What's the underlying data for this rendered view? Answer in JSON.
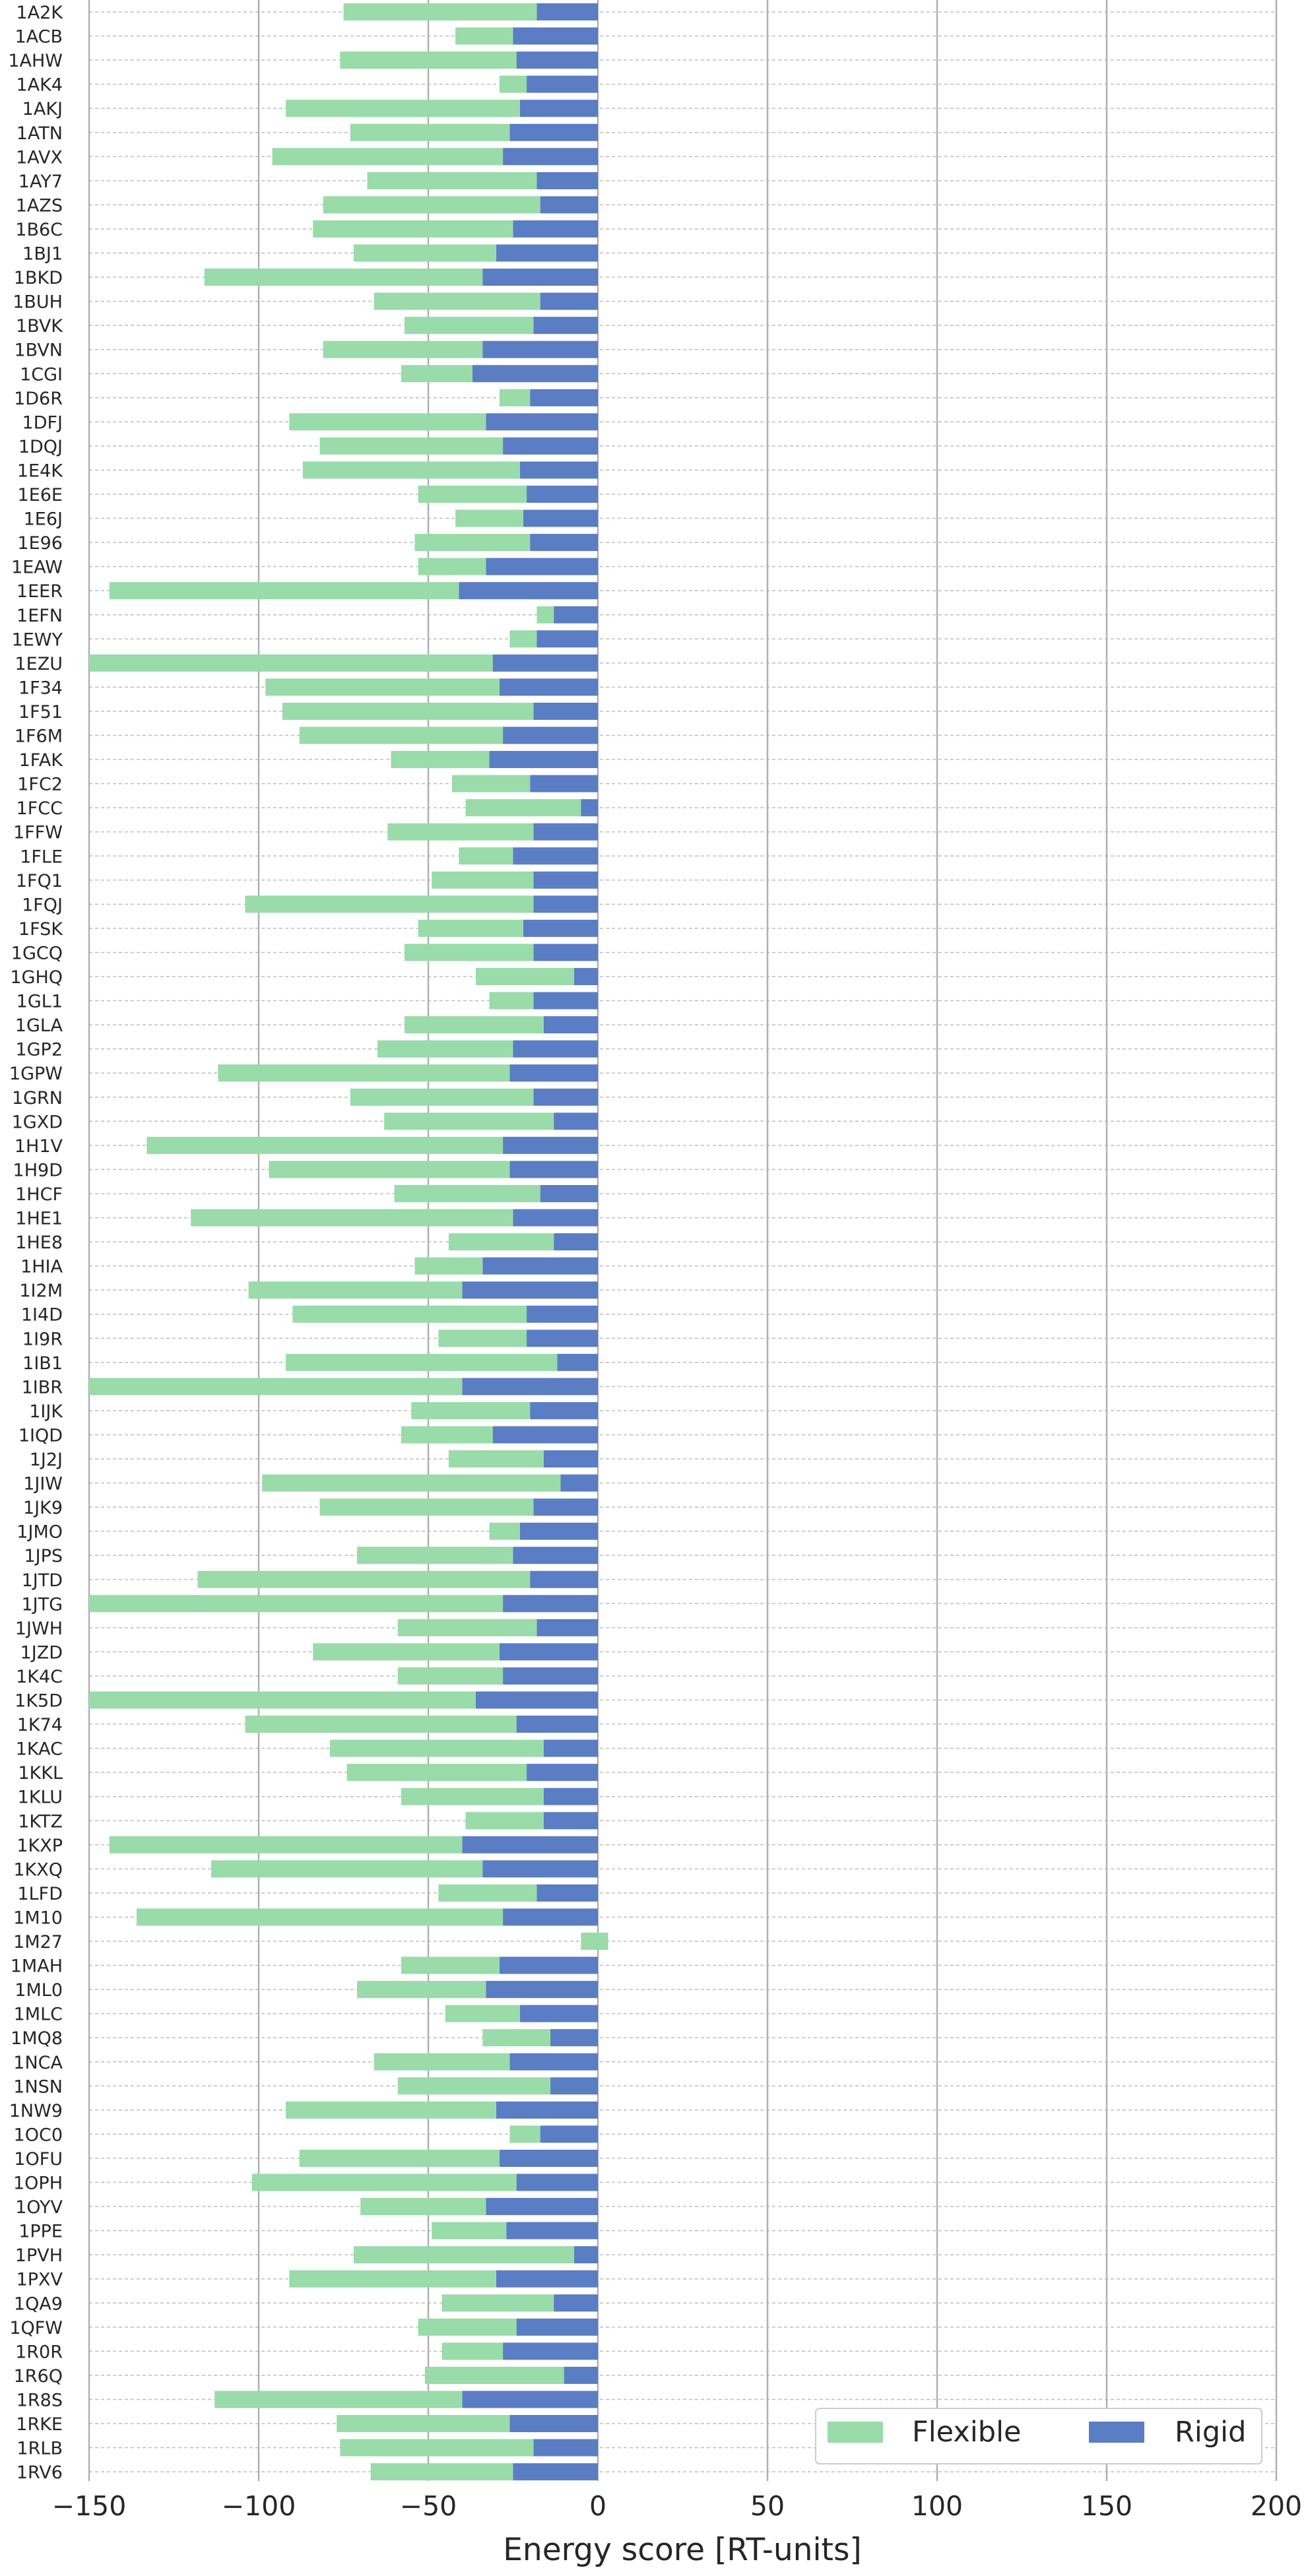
{
  "chart_data": {
    "type": "bar",
    "orientation": "horizontal",
    "stacked": true,
    "xlabel": "Energy score [RT-units]",
    "ylabel": "",
    "xlim": [
      -150,
      200
    ],
    "xticks": [
      -150,
      -100,
      -50,
      0,
      50,
      100,
      150,
      200
    ],
    "xtick_labels": [
      "−150",
      "−100",
      "−50",
      "0",
      "50",
      "100",
      "150",
      "200"
    ],
    "grid": {
      "x": "solid",
      "y": "dashed"
    },
    "legend": {
      "position": "bottom-right",
      "columns": 2
    },
    "categories": [
      "1A2K",
      "1ACB",
      "1AHW",
      "1AK4",
      "1AKJ",
      "1ATN",
      "1AVX",
      "1AY7",
      "1AZS",
      "1B6C",
      "1BJ1",
      "1BKD",
      "1BUH",
      "1BVK",
      "1BVN",
      "1CGI",
      "1D6R",
      "1DFJ",
      "1DQJ",
      "1E4K",
      "1E6E",
      "1E6J",
      "1E96",
      "1EAW",
      "1EER",
      "1EFN",
      "1EWY",
      "1EZU",
      "1F34",
      "1F51",
      "1F6M",
      "1FAK",
      "1FC2",
      "1FCC",
      "1FFW",
      "1FLE",
      "1FQ1",
      "1FQJ",
      "1FSK",
      "1GCQ",
      "1GHQ",
      "1GL1",
      "1GLA",
      "1GP2",
      "1GPW",
      "1GRN",
      "1GXD",
      "1H1V",
      "1H9D",
      "1HCF",
      "1HE1",
      "1HE8",
      "1HIA",
      "1I2M",
      "1I4D",
      "1I9R",
      "1IB1",
      "1IBR",
      "1IJK",
      "1IQD",
      "1J2J",
      "1JIW",
      "1JK9",
      "1JMO",
      "1JPS",
      "1JTD",
      "1JTG",
      "1JWH",
      "1JZD",
      "1K4C",
      "1K5D",
      "1K74",
      "1KAC",
      "1KKL",
      "1KLU",
      "1KTZ",
      "1KXP",
      "1KXQ",
      "1LFD",
      "1M10",
      "1M27",
      "1MAH",
      "1ML0",
      "1MLC",
      "1MQ8",
      "1NCA",
      "1NSN",
      "1NW9",
      "1OC0",
      "1OFU",
      "1OPH",
      "1OYV",
      "1PPE",
      "1PVH",
      "1PXV",
      "1QA9",
      "1QFW",
      "1R0R",
      "1R6Q",
      "1R8S",
      "1RKE",
      "1RLB",
      "1RV6"
    ],
    "series": [
      {
        "name": "Rigid",
        "color": "#5a7dc4",
        "values": [
          -18,
          -25,
          -24,
          -21,
          -23,
          -26,
          -28,
          -18,
          -17,
          -25,
          -30,
          -34,
          -17,
          -19,
          -34,
          -37,
          -20,
          -33,
          -28,
          -23,
          -21,
          -22,
          -20,
          -33,
          -41,
          -13,
          -18,
          -31,
          -29,
          -19,
          -28,
          -32,
          -20,
          -5,
          -19,
          -25,
          -19,
          -19,
          -22,
          -19,
          -7,
          -19,
          -16,
          -25,
          -26,
          -19,
          -13,
          -28,
          -26,
          -17,
          -25,
          -13,
          -34,
          -40,
          -21,
          -21,
          -12,
          -40,
          -20,
          -31,
          -16,
          -11,
          -19,
          -23,
          -25,
          -20,
          -28,
          -18,
          -29,
          -28,
          -36,
          -24,
          -16,
          -21,
          -16,
          -16,
          -40,
          -34,
          -18,
          -28,
          3,
          -29,
          -33,
          -23,
          -14,
          -26,
          -14,
          -30,
          -17,
          -29,
          -24,
          -33,
          -27,
          -7,
          -30,
          -13,
          -24,
          -28,
          -10,
          -40,
          -26,
          -19,
          -25
        ]
      },
      {
        "name": "Flexible",
        "color": "#99dba9",
        "values": [
          -57,
          -17,
          -52,
          -8,
          -69,
          -47,
          -68,
          -50,
          -64,
          -59,
          -42,
          -82,
          -49,
          -38,
          -47,
          -21,
          -9,
          -58,
          -54,
          -64,
          -32,
          -20,
          -34,
          -20,
          -103,
          -5,
          -8,
          -119,
          -69,
          -74,
          -60,
          -29,
          -23,
          -34,
          -43,
          -16,
          -30,
          -85,
          -31,
          -38,
          -29,
          -13,
          -41,
          -40,
          -86,
          -54,
          -50,
          -105,
          -71,
          -43,
          -95,
          -31,
          -20,
          -63,
          -69,
          -26,
          -80,
          -110,
          -35,
          -27,
          -28,
          -88,
          -63,
          -9,
          -46,
          -98,
          -122,
          -41,
          -55,
          -31,
          -114,
          -80,
          -63,
          -53,
          -42,
          -23,
          -104,
          -80,
          -29,
          -108,
          -8,
          -29,
          -38,
          -22,
          -20,
          -40,
          -45,
          -62,
          -9,
          -59,
          -78,
          -37,
          -22,
          -65,
          -61,
          -33,
          -29,
          -18,
          -41,
          -73,
          -51,
          -57,
          -42
        ]
      }
    ]
  }
}
